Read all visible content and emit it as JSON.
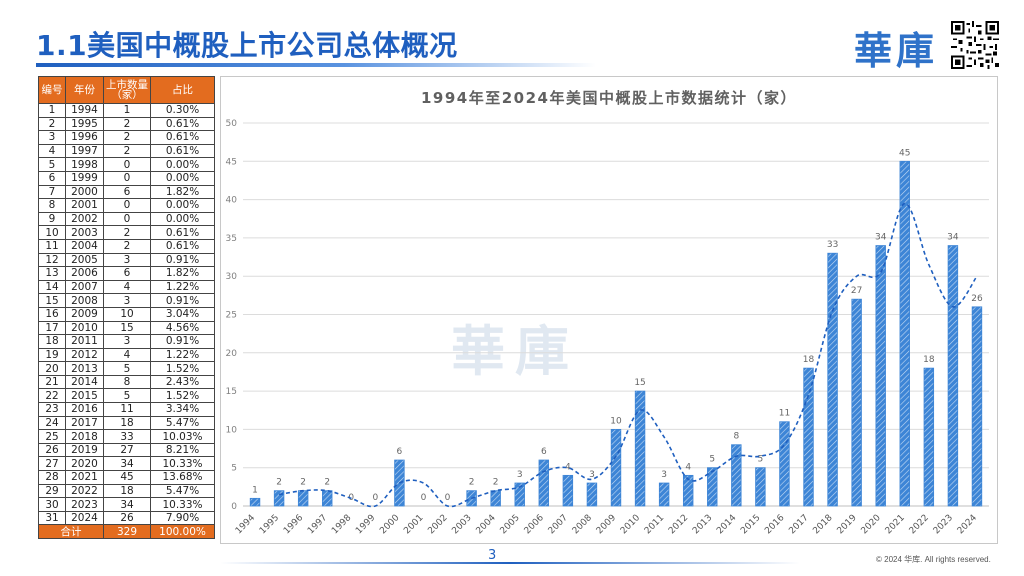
{
  "header": {
    "title": "1.1美国中概股上市公司总体概况",
    "logo_text": "華庫"
  },
  "table": {
    "headers": [
      "编号",
      "年份",
      "上市数量（家）",
      "占比"
    ],
    "rows": [
      [
        "1",
        "1994",
        "1",
        "0.30%"
      ],
      [
        "2",
        "1995",
        "2",
        "0.61%"
      ],
      [
        "3",
        "1996",
        "2",
        "0.61%"
      ],
      [
        "4",
        "1997",
        "2",
        "0.61%"
      ],
      [
        "5",
        "1998",
        "0",
        "0.00%"
      ],
      [
        "6",
        "1999",
        "0",
        "0.00%"
      ],
      [
        "7",
        "2000",
        "6",
        "1.82%"
      ],
      [
        "8",
        "2001",
        "0",
        "0.00%"
      ],
      [
        "9",
        "2002",
        "0",
        "0.00%"
      ],
      [
        "10",
        "2003",
        "2",
        "0.61%"
      ],
      [
        "11",
        "2004",
        "2",
        "0.61%"
      ],
      [
        "12",
        "2005",
        "3",
        "0.91%"
      ],
      [
        "13",
        "2006",
        "6",
        "1.82%"
      ],
      [
        "14",
        "2007",
        "4",
        "1.22%"
      ],
      [
        "15",
        "2008",
        "3",
        "0.91%"
      ],
      [
        "16",
        "2009",
        "10",
        "3.04%"
      ],
      [
        "17",
        "2010",
        "15",
        "4.56%"
      ],
      [
        "18",
        "2011",
        "3",
        "0.91%"
      ],
      [
        "19",
        "2012",
        "4",
        "1.22%"
      ],
      [
        "20",
        "2013",
        "5",
        "1.52%"
      ],
      [
        "21",
        "2014",
        "8",
        "2.43%"
      ],
      [
        "22",
        "2015",
        "5",
        "1.52%"
      ],
      [
        "23",
        "2016",
        "11",
        "3.34%"
      ],
      [
        "24",
        "2017",
        "18",
        "5.47%"
      ],
      [
        "25",
        "2018",
        "33",
        "10.03%"
      ],
      [
        "26",
        "2019",
        "27",
        "8.21%"
      ],
      [
        "27",
        "2020",
        "34",
        "10.33%"
      ],
      [
        "28",
        "2021",
        "45",
        "13.68%"
      ],
      [
        "29",
        "2022",
        "18",
        "5.47%"
      ],
      [
        "30",
        "2023",
        "34",
        "10.33%"
      ],
      [
        "31",
        "2024",
        "26",
        "7.90%"
      ]
    ],
    "total": [
      "合计",
      "329",
      "100.00%"
    ]
  },
  "chart_data": {
    "type": "bar",
    "title": "1994年至2024年美国中概股上市数据统计（家）",
    "categories": [
      "1994",
      "1995",
      "1996",
      "1997",
      "1998",
      "1999",
      "2000",
      "2001",
      "2002",
      "2003",
      "2004",
      "2005",
      "2006",
      "2007",
      "2008",
      "2009",
      "2010",
      "2011",
      "2012",
      "2013",
      "2014",
      "2015",
      "2016",
      "2017",
      "2018",
      "2019",
      "2020",
      "2021",
      "2022",
      "2023",
      "2024"
    ],
    "values": [
      1,
      2,
      2,
      2,
      0,
      0,
      6,
      0,
      0,
      2,
      2,
      3,
      6,
      4,
      3,
      10,
      15,
      3,
      4,
      5,
      8,
      5,
      11,
      18,
      33,
      27,
      34,
      45,
      18,
      34,
      26
    ],
    "trendline": "2-period moving average (dashed)",
    "ylim": [
      0,
      50
    ],
    "yticks": [
      0,
      5,
      10,
      15,
      20,
      25,
      30,
      35,
      40,
      45,
      50
    ],
    "grid": true,
    "bar_color": "#3d85d6",
    "trend_color": "#1f5fbf",
    "watermark": "華庫"
  },
  "footer": {
    "page_number": "3",
    "copyright": "© 2024 华库. All rights reserved."
  }
}
